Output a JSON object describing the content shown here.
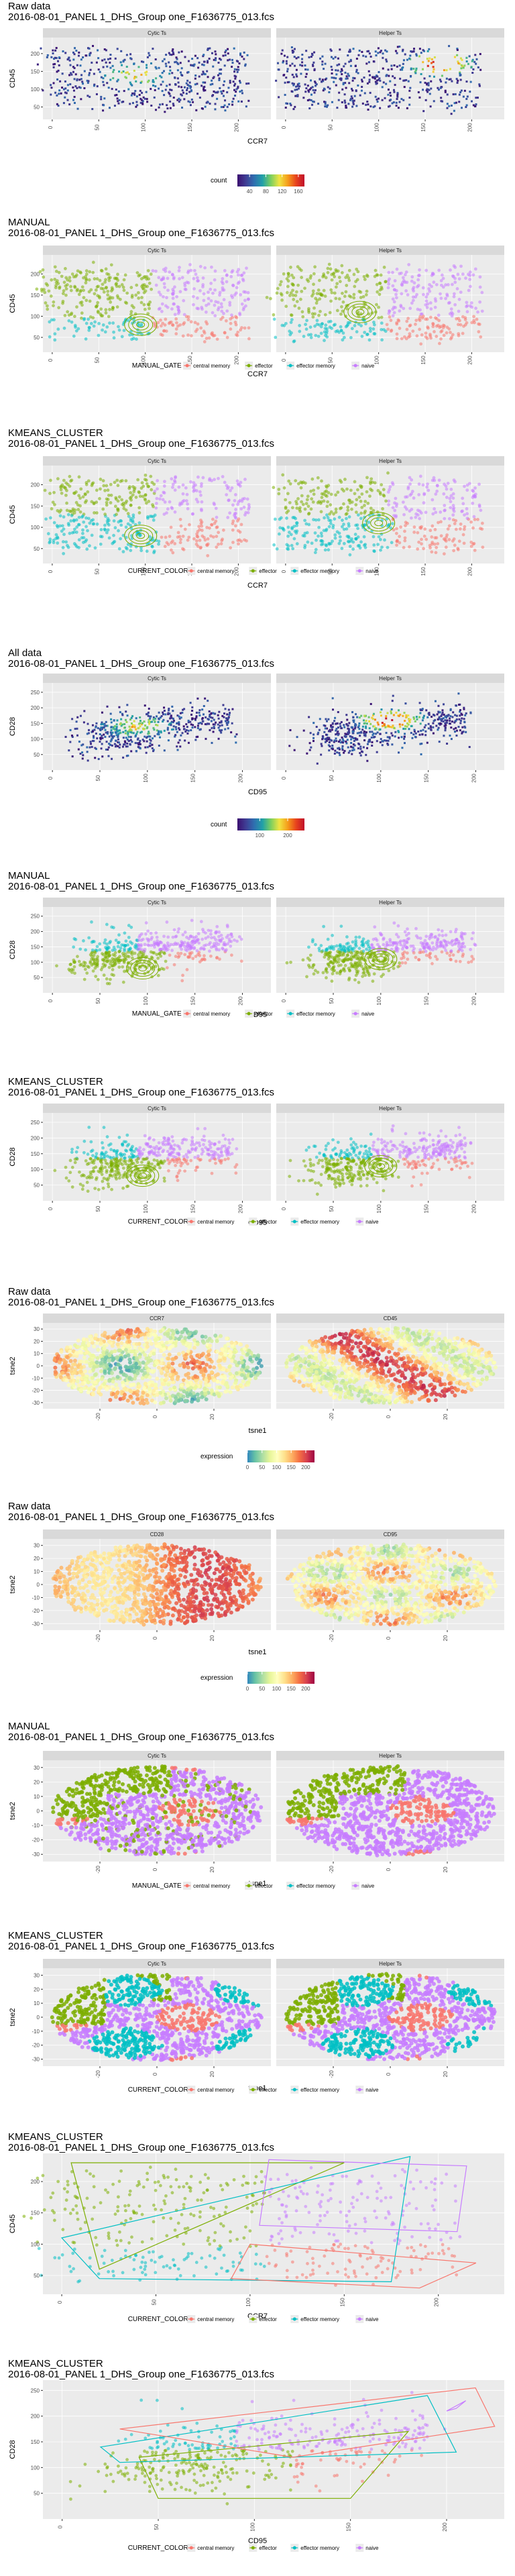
{
  "colors": {
    "central memory": "#f8766d",
    "effector": "#7cae00",
    "effector memory": "#00bfc4",
    "naive": "#c77cff",
    "panel_bg": "#ebebeb",
    "strip_bg": "#d9d9d9",
    "grid": "#ffffff"
  },
  "chart_data": [
    {
      "id": "p1",
      "type": "heatmap",
      "style": "density",
      "title": [
        "Raw data",
        "2016-08-01_PANEL 1_DHS_Group one_F1636775_013.fcs"
      ],
      "facets": [
        "Cytic Ts",
        "Helper Ts"
      ],
      "xlabel": "CCR7",
      "ylabel": "CD45",
      "xlim": [
        -10,
        235
      ],
      "ylim": [
        15,
        245
      ],
      "xticks": [
        0,
        50,
        100,
        150,
        200
      ],
      "yticks": [
        50,
        100,
        150,
        200
      ],
      "legend": {
        "kind": "colorbar",
        "title": "count",
        "ticks": [
          40,
          80,
          120,
          160
        ],
        "range": [
          10,
          175
        ]
      }
    },
    {
      "id": "p2",
      "type": "scatter",
      "style": "gates_ccr7",
      "title": [
        "MANUAL",
        "2016-08-01_PANEL 1_DHS_Group one_F1636775_013.fcs"
      ],
      "facets": [
        "Cytic Ts",
        "Helper Ts"
      ],
      "xlabel": "CCR7",
      "ylabel": "CD45",
      "xlim": [
        -10,
        235
      ],
      "ylim": [
        15,
        245
      ],
      "xticks": [
        0,
        50,
        100,
        150,
        200
      ],
      "yticks": [
        50,
        100,
        150,
        200
      ],
      "legend": {
        "kind": "categories",
        "title": "MANUAL_GATE",
        "items": [
          "central memory",
          "effector",
          "effector memory",
          "naive"
        ]
      }
    },
    {
      "id": "p3",
      "type": "scatter",
      "style": "kmeans_ccr7",
      "title": [
        "KMEANS_CLUSTER",
        "2016-08-01_PANEL 1_DHS_Group one_F1636775_013.fcs"
      ],
      "facets": [
        "Cytic Ts",
        "Helper Ts"
      ],
      "xlabel": "CCR7",
      "ylabel": "CD45",
      "xlim": [
        -10,
        235
      ],
      "ylim": [
        15,
        245
      ],
      "xticks": [
        0,
        50,
        100,
        150,
        200
      ],
      "yticks": [
        50,
        100,
        150,
        200
      ],
      "legend": {
        "kind": "categories",
        "title": "CURRENT_COLOR",
        "items": [
          "central memory",
          "effector",
          "effector memory",
          "naive"
        ]
      }
    },
    {
      "id": "p4",
      "type": "heatmap",
      "style": "density_cd95",
      "title": [
        "All data",
        "2016-08-01_PANEL 1_DHS_Group one_F1636775_013.fcs"
      ],
      "facets": [
        "Cytic Ts",
        "Helper Ts"
      ],
      "xlabel": "CD95",
      "ylabel": "CD28",
      "xlim": [
        -10,
        230
      ],
      "ylim": [
        0,
        280
      ],
      "xticks": [
        0,
        50,
        100,
        150,
        200
      ],
      "yticks": [
        50,
        100,
        150,
        200,
        250
      ],
      "legend": {
        "kind": "colorbar",
        "title": "count",
        "ticks": [
          100,
          200
        ],
        "range": [
          20,
          260
        ]
      }
    },
    {
      "id": "p5",
      "type": "scatter",
      "style": "gates_cd95",
      "title": [
        "MANUAL",
        "2016-08-01_PANEL 1_DHS_Group one_F1636775_013.fcs"
      ],
      "facets": [
        "Cytic Ts",
        "Helper Ts"
      ],
      "xlabel": "CD95",
      "ylabel": "CD28",
      "xlim": [
        -10,
        230
      ],
      "ylim": [
        0,
        280
      ],
      "xticks": [
        0,
        50,
        100,
        150,
        200
      ],
      "yticks": [
        50,
        100,
        150,
        200,
        250
      ],
      "legend": {
        "kind": "categories",
        "title": "MANUAL_GATE",
        "items": [
          "central memory",
          "effector",
          "effector memory",
          "naive"
        ]
      }
    },
    {
      "id": "p6",
      "type": "scatter",
      "style": "gates_cd95",
      "title": [
        "KMEANS_CLUSTER",
        "2016-08-01_PANEL 1_DHS_Group one_F1636775_013.fcs"
      ],
      "facets": [
        "Cytic Ts",
        "Helper Ts"
      ],
      "xlabel": "CD95",
      "ylabel": "CD28",
      "xlim": [
        -10,
        230
      ],
      "ylim": [
        0,
        280
      ],
      "xticks": [
        0,
        50,
        100,
        150,
        200
      ],
      "yticks": [
        50,
        100,
        150,
        200,
        250
      ],
      "legend": {
        "kind": "categories",
        "title": "CURRENT_COLOR",
        "items": [
          "central memory",
          "effector",
          "effector memory",
          "naive"
        ]
      }
    },
    {
      "id": "p7",
      "type": "scatter",
      "style": "tsne_expr",
      "title": [
        "Raw data",
        "2016-08-01_PANEL 1_DHS_Group one_F1636775_013.fcs"
      ],
      "facets": [
        "CCR7",
        "CD45"
      ],
      "xlabel": "tsne1",
      "ylabel": "tsne2",
      "xlim": [
        -40,
        40
      ],
      "ylim": [
        -35,
        35
      ],
      "xticks": [
        -20,
        0,
        20
      ],
      "yticks": [
        -30,
        -20,
        -10,
        0,
        10,
        20,
        30
      ],
      "legend": {
        "kind": "colorbar",
        "title": "expression",
        "ticks": [
          0,
          50,
          100,
          150,
          200
        ],
        "range": [
          0,
          230
        ],
        "palette": "spectral"
      }
    },
    {
      "id": "p8",
      "type": "scatter",
      "style": "tsne_expr2",
      "title": [
        "Raw data",
        "2016-08-01_PANEL 1_DHS_Group one_F1636775_013.fcs"
      ],
      "facets": [
        "CD28",
        "CD95"
      ],
      "xlabel": "tsne1",
      "ylabel": "tsne2",
      "xlim": [
        -40,
        40
      ],
      "ylim": [
        -35,
        35
      ],
      "xticks": [
        -20,
        0,
        20
      ],
      "yticks": [
        -30,
        -20,
        -10,
        0,
        10,
        20,
        30
      ],
      "legend": {
        "kind": "colorbar",
        "title": "expression",
        "ticks": [
          0,
          50,
          100,
          150,
          200
        ],
        "range": [
          0,
          230
        ],
        "palette": "spectral"
      }
    },
    {
      "id": "p9",
      "type": "scatter",
      "style": "tsne_cat",
      "title": [
        "MANUAL",
        "2016-08-01_PANEL 1_DHS_Group one_F1636775_013.fcs"
      ],
      "facets": [
        "Cytic Ts",
        "Helper Ts"
      ],
      "xlabel": "tsne1",
      "ylabel": "tsne2",
      "xlim": [
        -40,
        40
      ],
      "ylim": [
        -35,
        35
      ],
      "xticks": [
        -20,
        0,
        20
      ],
      "yticks": [
        -30,
        -20,
        -10,
        0,
        10,
        20,
        30
      ],
      "legend": {
        "kind": "categories",
        "title": "MANUAL_GATE",
        "items": [
          "central memory",
          "effector",
          "effector memory",
          "naive"
        ]
      }
    },
    {
      "id": "p10",
      "type": "scatter",
      "style": "tsne_cat2",
      "title": [
        "KMEANS_CLUSTER",
        "2016-08-01_PANEL 1_DHS_Group one_F1636775_013.fcs"
      ],
      "facets": [
        "Cytic Ts",
        "Helper Ts"
      ],
      "xlabel": "tsne1",
      "ylabel": "tsne2",
      "xlim": [
        -40,
        40
      ],
      "ylim": [
        -35,
        35
      ],
      "xticks": [
        -20,
        0,
        20
      ],
      "yticks": [
        -30,
        -20,
        -10,
        0,
        10,
        20,
        30
      ],
      "legend": {
        "kind": "categories",
        "title": "CURRENT_COLOR",
        "items": [
          "central memory",
          "effector",
          "effector memory",
          "naive"
        ]
      }
    },
    {
      "id": "p11",
      "type": "scatter",
      "style": "hull_ccr7",
      "title": [
        "KMEANS_CLUSTER",
        "2016-08-01_PANEL 1_DHS_Group one_F1636775_013.fcs"
      ],
      "facets": [],
      "xlabel": "CCR7",
      "ylabel": "CD45",
      "xlim": [
        -10,
        235
      ],
      "ylim": [
        20,
        245
      ],
      "xticks": [
        0,
        50,
        100,
        150,
        200
      ],
      "yticks": [
        50,
        100,
        150,
        200
      ],
      "legend": {
        "kind": "categories",
        "title": "CURRENT_COLOR",
        "items": [
          "central memory",
          "effector",
          "effector memory",
          "naive"
        ]
      }
    },
    {
      "id": "p12",
      "type": "scatter",
      "style": "hull_cd95",
      "title": [
        "KMEANS_CLUSTER",
        "2016-08-01_PANEL 1_DHS_Group one_F1636775_013.fcs"
      ],
      "facets": [],
      "xlabel": "CD95",
      "ylabel": "CD28",
      "xlim": [
        -10,
        230
      ],
      "ylim": [
        0,
        270
      ],
      "xticks": [
        0,
        50,
        100,
        150,
        200
      ],
      "yticks": [
        50,
        100,
        150,
        200,
        250
      ],
      "legend": {
        "kind": "categories",
        "title": "CURRENT_COLOR",
        "items": [
          "central memory",
          "effector",
          "effector memory",
          "naive"
        ]
      }
    }
  ]
}
